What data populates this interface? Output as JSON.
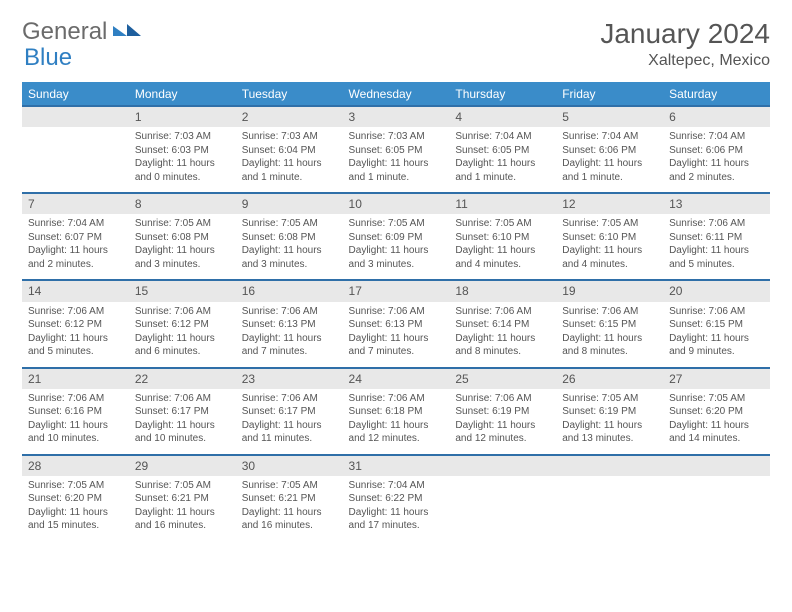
{
  "brand": {
    "part1": "General",
    "part2": "Blue"
  },
  "title": "January 2024",
  "location": "Xaltepec, Mexico",
  "colors": {
    "header_bg": "#3a8cc9",
    "header_text": "#ffffff",
    "daynum_bg": "#e8e8e8",
    "border": "#2f6fa8",
    "text": "#555555",
    "brand_gray": "#6b6b6b",
    "brand_blue": "#2f7fc2"
  },
  "weekdays": [
    "Sunday",
    "Monday",
    "Tuesday",
    "Wednesday",
    "Thursday",
    "Friday",
    "Saturday"
  ],
  "weeks": [
    {
      "nums": [
        "",
        "1",
        "2",
        "3",
        "4",
        "5",
        "6"
      ],
      "cells": [
        {
          "lines": [
            "",
            "",
            "",
            ""
          ]
        },
        {
          "lines": [
            "Sunrise: 7:03 AM",
            "Sunset: 6:03 PM",
            "Daylight: 11 hours",
            "and 0 minutes."
          ]
        },
        {
          "lines": [
            "Sunrise: 7:03 AM",
            "Sunset: 6:04 PM",
            "Daylight: 11 hours",
            "and 1 minute."
          ]
        },
        {
          "lines": [
            "Sunrise: 7:03 AM",
            "Sunset: 6:05 PM",
            "Daylight: 11 hours",
            "and 1 minute."
          ]
        },
        {
          "lines": [
            "Sunrise: 7:04 AM",
            "Sunset: 6:05 PM",
            "Daylight: 11 hours",
            "and 1 minute."
          ]
        },
        {
          "lines": [
            "Sunrise: 7:04 AM",
            "Sunset: 6:06 PM",
            "Daylight: 11 hours",
            "and 1 minute."
          ]
        },
        {
          "lines": [
            "Sunrise: 7:04 AM",
            "Sunset: 6:06 PM",
            "Daylight: 11 hours",
            "and 2 minutes."
          ]
        }
      ]
    },
    {
      "nums": [
        "7",
        "8",
        "9",
        "10",
        "11",
        "12",
        "13"
      ],
      "cells": [
        {
          "lines": [
            "Sunrise: 7:04 AM",
            "Sunset: 6:07 PM",
            "Daylight: 11 hours",
            "and 2 minutes."
          ]
        },
        {
          "lines": [
            "Sunrise: 7:05 AM",
            "Sunset: 6:08 PM",
            "Daylight: 11 hours",
            "and 3 minutes."
          ]
        },
        {
          "lines": [
            "Sunrise: 7:05 AM",
            "Sunset: 6:08 PM",
            "Daylight: 11 hours",
            "and 3 minutes."
          ]
        },
        {
          "lines": [
            "Sunrise: 7:05 AM",
            "Sunset: 6:09 PM",
            "Daylight: 11 hours",
            "and 3 minutes."
          ]
        },
        {
          "lines": [
            "Sunrise: 7:05 AM",
            "Sunset: 6:10 PM",
            "Daylight: 11 hours",
            "and 4 minutes."
          ]
        },
        {
          "lines": [
            "Sunrise: 7:05 AM",
            "Sunset: 6:10 PM",
            "Daylight: 11 hours",
            "and 4 minutes."
          ]
        },
        {
          "lines": [
            "Sunrise: 7:06 AM",
            "Sunset: 6:11 PM",
            "Daylight: 11 hours",
            "and 5 minutes."
          ]
        }
      ]
    },
    {
      "nums": [
        "14",
        "15",
        "16",
        "17",
        "18",
        "19",
        "20"
      ],
      "cells": [
        {
          "lines": [
            "Sunrise: 7:06 AM",
            "Sunset: 6:12 PM",
            "Daylight: 11 hours",
            "and 5 minutes."
          ]
        },
        {
          "lines": [
            "Sunrise: 7:06 AM",
            "Sunset: 6:12 PM",
            "Daylight: 11 hours",
            "and 6 minutes."
          ]
        },
        {
          "lines": [
            "Sunrise: 7:06 AM",
            "Sunset: 6:13 PM",
            "Daylight: 11 hours",
            "and 7 minutes."
          ]
        },
        {
          "lines": [
            "Sunrise: 7:06 AM",
            "Sunset: 6:13 PM",
            "Daylight: 11 hours",
            "and 7 minutes."
          ]
        },
        {
          "lines": [
            "Sunrise: 7:06 AM",
            "Sunset: 6:14 PM",
            "Daylight: 11 hours",
            "and 8 minutes."
          ]
        },
        {
          "lines": [
            "Sunrise: 7:06 AM",
            "Sunset: 6:15 PM",
            "Daylight: 11 hours",
            "and 8 minutes."
          ]
        },
        {
          "lines": [
            "Sunrise: 7:06 AM",
            "Sunset: 6:15 PM",
            "Daylight: 11 hours",
            "and 9 minutes."
          ]
        }
      ]
    },
    {
      "nums": [
        "21",
        "22",
        "23",
        "24",
        "25",
        "26",
        "27"
      ],
      "cells": [
        {
          "lines": [
            "Sunrise: 7:06 AM",
            "Sunset: 6:16 PM",
            "Daylight: 11 hours",
            "and 10 minutes."
          ]
        },
        {
          "lines": [
            "Sunrise: 7:06 AM",
            "Sunset: 6:17 PM",
            "Daylight: 11 hours",
            "and 10 minutes."
          ]
        },
        {
          "lines": [
            "Sunrise: 7:06 AM",
            "Sunset: 6:17 PM",
            "Daylight: 11 hours",
            "and 11 minutes."
          ]
        },
        {
          "lines": [
            "Sunrise: 7:06 AM",
            "Sunset: 6:18 PM",
            "Daylight: 11 hours",
            "and 12 minutes."
          ]
        },
        {
          "lines": [
            "Sunrise: 7:06 AM",
            "Sunset: 6:19 PM",
            "Daylight: 11 hours",
            "and 12 minutes."
          ]
        },
        {
          "lines": [
            "Sunrise: 7:05 AM",
            "Sunset: 6:19 PM",
            "Daylight: 11 hours",
            "and 13 minutes."
          ]
        },
        {
          "lines": [
            "Sunrise: 7:05 AM",
            "Sunset: 6:20 PM",
            "Daylight: 11 hours",
            "and 14 minutes."
          ]
        }
      ]
    },
    {
      "nums": [
        "28",
        "29",
        "30",
        "31",
        "",
        "",
        ""
      ],
      "cells": [
        {
          "lines": [
            "Sunrise: 7:05 AM",
            "Sunset: 6:20 PM",
            "Daylight: 11 hours",
            "and 15 minutes."
          ]
        },
        {
          "lines": [
            "Sunrise: 7:05 AM",
            "Sunset: 6:21 PM",
            "Daylight: 11 hours",
            "and 16 minutes."
          ]
        },
        {
          "lines": [
            "Sunrise: 7:05 AM",
            "Sunset: 6:21 PM",
            "Daylight: 11 hours",
            "and 16 minutes."
          ]
        },
        {
          "lines": [
            "Sunrise: 7:04 AM",
            "Sunset: 6:22 PM",
            "Daylight: 11 hours",
            "and 17 minutes."
          ]
        },
        {
          "lines": [
            "",
            "",
            "",
            ""
          ]
        },
        {
          "lines": [
            "",
            "",
            "",
            ""
          ]
        },
        {
          "lines": [
            "",
            "",
            "",
            ""
          ]
        }
      ]
    }
  ]
}
